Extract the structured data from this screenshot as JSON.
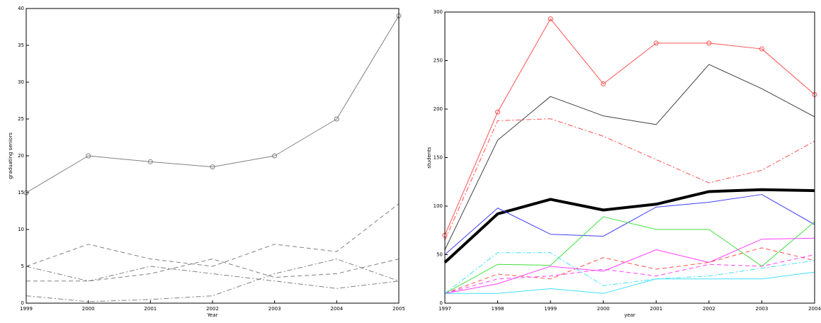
{
  "chart_data": [
    {
      "type": "line",
      "xlabel": "Year",
      "ylabel": "graduating seniors",
      "x": [
        1999,
        2000,
        2001,
        2002,
        2003,
        2004,
        2005
      ],
      "xlim": [
        1999,
        2005
      ],
      "xticks": [
        1999,
        2000,
        2001,
        2002,
        2003,
        2004,
        2005
      ],
      "ylim": [
        0,
        40
      ],
      "yticks": [
        0,
        5,
        10,
        15,
        20,
        25,
        30,
        35,
        40
      ],
      "series": [
        {
          "color": "#808080",
          "style": "solid",
          "marker": "circle",
          "width": 1,
          "values": [
            15,
            20,
            19.2,
            18.5,
            20,
            25,
            39
          ]
        },
        {
          "color": "#808080",
          "style": "dashed",
          "width": 1,
          "values": [
            5,
            8,
            6,
            5,
            8,
            7,
            13.5
          ]
        },
        {
          "color": "#808080",
          "style": "dashed",
          "width": 1,
          "values": [
            3,
            3,
            4,
            6,
            3.5,
            4,
            6
          ]
        },
        {
          "color": "#808080",
          "style": "dashdot",
          "width": 1,
          "values": [
            5,
            3,
            5,
            4,
            3,
            2,
            3
          ]
        },
        {
          "color": "#808080",
          "style": "dashdot",
          "width": 1,
          "values": [
            1,
            0.2,
            0.5,
            1,
            4,
            6,
            3
          ]
        }
      ]
    },
    {
      "type": "line",
      "xlabel": "year",
      "ylabel": "students",
      "x": [
        1997,
        1998,
        1999,
        2000,
        2001,
        2002,
        2003,
        2004
      ],
      "xlim": [
        1997,
        2004
      ],
      "xticks": [
        1997,
        1998,
        1999,
        2000,
        2001,
        2002,
        2003,
        2004
      ],
      "ylim": [
        0,
        300
      ],
      "yticks": [
        0,
        50,
        100,
        150,
        200,
        250,
        300
      ],
      "series": [
        {
          "color": "#ff5050",
          "style": "solid",
          "marker": "circle",
          "width": 1,
          "values": [
            70,
            197,
            293,
            226,
            268,
            268,
            262,
            215
          ]
        },
        {
          "color": "#404040",
          "style": "solid",
          "width": 1,
          "values": [
            55,
            168,
            213,
            193,
            184,
            246,
            221,
            192
          ]
        },
        {
          "color": "#ff5050",
          "style": "dashdot",
          "width": 1,
          "values": [
            65,
            188,
            190,
            172,
            148,
            124,
            137,
            167
          ]
        },
        {
          "color": "#000000",
          "style": "solid",
          "width": 4,
          "values": [
            42,
            92,
            107,
            96,
            102,
            115,
            117,
            116
          ]
        },
        {
          "color": "#4040ff",
          "style": "solid",
          "width": 1,
          "values": [
            50,
            98,
            71,
            69,
            99,
            104,
            112,
            81
          ]
        },
        {
          "color": "#40e040",
          "style": "solid",
          "width": 1,
          "values": [
            10,
            40,
            39,
            89,
            76,
            76,
            38,
            84
          ]
        },
        {
          "color": "#ff40ff",
          "style": "solid",
          "width": 1,
          "values": [
            10,
            20,
            38,
            33,
            55,
            42,
            66,
            67
          ]
        },
        {
          "color": "#ff5050",
          "style": "dashed",
          "width": 1,
          "values": [
            10,
            30,
            25,
            47,
            35,
            42,
            57,
            44
          ]
        },
        {
          "color": "#ff40ff",
          "style": "dashed",
          "width": 1,
          "values": [
            10,
            25,
            28,
            35,
            28,
            40,
            38,
            50
          ]
        },
        {
          "color": "#40e0ff",
          "style": "dashdot",
          "width": 1,
          "values": [
            10,
            52,
            52,
            18,
            25,
            28,
            36,
            44
          ]
        },
        {
          "color": "#40e0ff",
          "style": "solid",
          "width": 1,
          "values": [
            10,
            10,
            15,
            10,
            25,
            25,
            25,
            32
          ]
        }
      ]
    }
  ]
}
